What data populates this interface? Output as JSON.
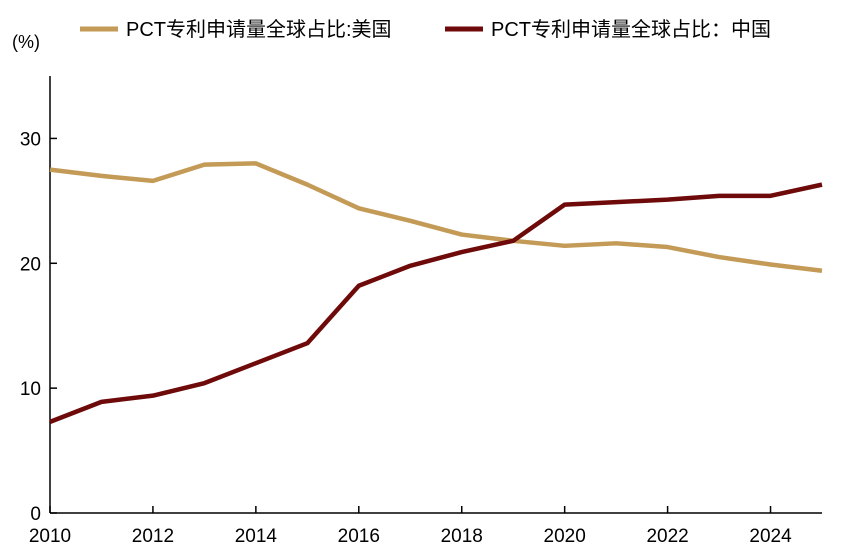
{
  "colors": {
    "usa": "#c39a56",
    "china": "#6e0a0a",
    "axis": "#000000",
    "background": "#ffffff"
  },
  "chart_data": {
    "type": "line",
    "title": "",
    "unit_label": "(%)",
    "xlabel": "",
    "ylabel": "",
    "xlim": [
      2010,
      2025
    ],
    "ylim": [
      0,
      35
    ],
    "grid": false,
    "legend_position": "top",
    "x_ticks": [
      2010,
      2012,
      2014,
      2016,
      2018,
      2020,
      2022,
      2024
    ],
    "x_tick_labels": [
      "2010",
      "2012",
      "2014",
      "2016",
      "2018",
      "2020",
      "2022",
      "2024"
    ],
    "y_ticks": [
      0,
      10,
      20,
      30
    ],
    "y_tick_labels": [
      "0",
      "10",
      "20",
      "30"
    ],
    "x": [
      2010,
      2011,
      2012,
      2013,
      2014,
      2015,
      2016,
      2017,
      2018,
      2019,
      2020,
      2021,
      2022,
      2023,
      2024,
      2025
    ],
    "series": [
      {
        "name": "PCT专利申请量全球占比:美国",
        "key": "usa",
        "values": [
          27.5,
          27.0,
          26.6,
          27.9,
          28.0,
          26.3,
          24.4,
          23.4,
          22.3,
          21.8,
          21.4,
          21.6,
          21.3,
          20.5,
          19.9,
          19.4
        ]
      },
      {
        "name": "PCT专利申请量全球占比：中国",
        "key": "china",
        "values": [
          7.3,
          8.9,
          9.4,
          10.4,
          12.0,
          13.6,
          18.2,
          19.8,
          20.9,
          21.8,
          24.7,
          24.9,
          25.1,
          25.4,
          25.4,
          26.3
        ]
      }
    ]
  }
}
